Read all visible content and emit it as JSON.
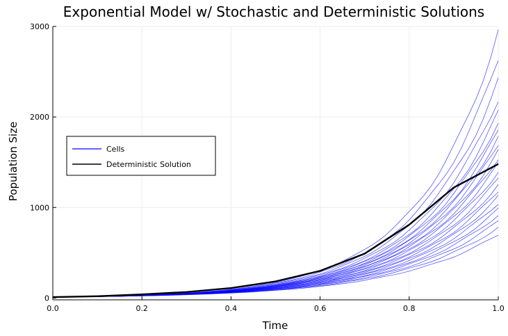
{
  "chart_data": {
    "type": "line",
    "title": "Exponential Model w/ Stochastic and Deterministic Solutions",
    "xlabel": "Time",
    "ylabel": "Population Size",
    "xlim": [
      0.0,
      1.0
    ],
    "ylim": [
      -20,
      3000
    ],
    "xticks": [
      "0.0",
      "0.2",
      "0.4",
      "0.6",
      "0.8",
      "1.0"
    ],
    "yticks": [
      "0",
      "1000",
      "2000",
      "3000"
    ],
    "grid": true,
    "legend_position": "left",
    "x": [
      0.0,
      0.1,
      0.2,
      0.3,
      0.4,
      0.5,
      0.6,
      0.7,
      0.8,
      0.9,
      1.0
    ],
    "series": [
      {
        "name": "Cells",
        "color": "#0000ff",
        "count_shown": "many stochastic trajectories",
        "representative_final_values": [
          700,
          780,
          850,
          920,
          980,
          1050,
          1120,
          1180,
          1250,
          1320,
          1400,
          1480,
          1550,
          1620,
          1700,
          1780,
          1850,
          1950,
          2050,
          2200,
          2400,
          2650,
          2950
        ]
      },
      {
        "name": "Deterministic Solution",
        "color": "#000000",
        "values": [
          10,
          20,
          40,
          66,
          110,
          183,
          300,
          490,
          810,
          1220,
          1480
        ]
      }
    ]
  }
}
